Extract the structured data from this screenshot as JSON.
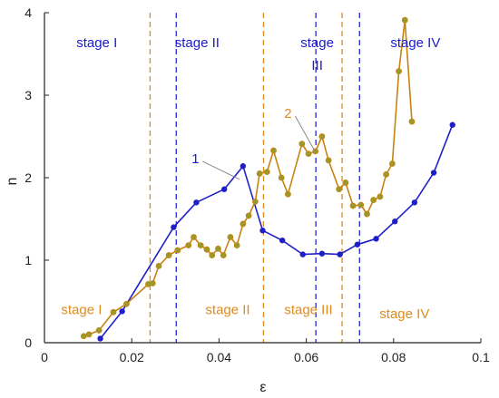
{
  "chart_data": {
    "type": "line",
    "xlabel": "ε",
    "ylabel": "n",
    "xlim": [
      0,
      0.1
    ],
    "ylim": [
      0,
      4
    ],
    "x_ticks": [
      {
        "value": 0,
        "label": "0"
      },
      {
        "value": 0.02,
        "label": "0.02"
      },
      {
        "value": 0.04,
        "label": "0.04"
      },
      {
        "value": 0.06,
        "label": "0.06"
      },
      {
        "value": 0.08,
        "label": "0.08"
      },
      {
        "value": 0.1,
        "label": "0.1"
      }
    ],
    "y_ticks": [
      {
        "value": 0,
        "label": "0"
      },
      {
        "value": 1,
        "label": "1"
      },
      {
        "value": 2,
        "label": "2"
      },
      {
        "value": 3,
        "label": "3"
      },
      {
        "value": 4,
        "label": "4"
      }
    ],
    "grid": false,
    "colors": {
      "series1": "#1f1fc8",
      "series2": "#c8820f",
      "series2_marker": "#9a9a2a"
    },
    "series": [
      {
        "name": "1",
        "color": "#1f1fc8",
        "points": [
          [
            0.0128,
            0.05
          ],
          [
            0.0178,
            0.38
          ],
          [
            0.0296,
            1.4
          ],
          [
            0.0348,
            1.7
          ],
          [
            0.0412,
            1.86
          ],
          [
            0.0455,
            2.14
          ],
          [
            0.05,
            1.36
          ],
          [
            0.0545,
            1.24
          ],
          [
            0.0592,
            1.07
          ],
          [
            0.0636,
            1.08
          ],
          [
            0.0677,
            1.07
          ],
          [
            0.0717,
            1.19
          ],
          [
            0.076,
            1.26
          ],
          [
            0.0803,
            1.47
          ],
          [
            0.0848,
            1.7
          ],
          [
            0.0892,
            2.06
          ],
          [
            0.0935,
            2.64
          ]
        ]
      },
      {
        "name": "2",
        "color": "#c8820f",
        "points": [
          [
            0.009,
            0.08
          ],
          [
            0.0102,
            0.1
          ],
          [
            0.0125,
            0.15
          ],
          [
            0.0158,
            0.37
          ],
          [
            0.0188,
            0.47
          ],
          [
            0.0238,
            0.71
          ],
          [
            0.0248,
            0.72
          ],
          [
            0.0262,
            0.93
          ],
          [
            0.0285,
            1.06
          ],
          [
            0.0305,
            1.12
          ],
          [
            0.033,
            1.18
          ],
          [
            0.0342,
            1.28
          ],
          [
            0.0358,
            1.18
          ],
          [
            0.0372,
            1.13
          ],
          [
            0.0384,
            1.06
          ],
          [
            0.0398,
            1.14
          ],
          [
            0.041,
            1.06
          ],
          [
            0.0426,
            1.28
          ],
          [
            0.0441,
            1.18
          ],
          [
            0.0455,
            1.44
          ],
          [
            0.0468,
            1.54
          ],
          [
            0.0483,
            1.71
          ],
          [
            0.0493,
            2.05
          ],
          [
            0.051,
            2.07
          ],
          [
            0.0525,
            2.33
          ],
          [
            0.0543,
            2.0
          ],
          [
            0.0558,
            1.8
          ],
          [
            0.059,
            2.41
          ],
          [
            0.0605,
            2.29
          ],
          [
            0.0621,
            2.32
          ],
          [
            0.0636,
            2.5
          ],
          [
            0.0651,
            2.21
          ],
          [
            0.0675,
            1.86
          ],
          [
            0.069,
            1.94
          ],
          [
            0.0707,
            1.66
          ],
          [
            0.0725,
            1.67
          ],
          [
            0.0739,
            1.56
          ],
          [
            0.0754,
            1.73
          ],
          [
            0.0769,
            1.77
          ],
          [
            0.0783,
            2.04
          ],
          [
            0.0797,
            2.17
          ],
          [
            0.0812,
            3.29
          ],
          [
            0.0826,
            3.91
          ],
          [
            0.0842,
            2.68
          ]
        ]
      }
    ],
    "stage_lines": [
      {
        "x": 0.0242,
        "color": "#e08a1e"
      },
      {
        "x": 0.0302,
        "color": "#2a2ad8"
      },
      {
        "x": 0.0502,
        "color": "#e08a1e"
      },
      {
        "x": 0.0622,
        "color": "#2a2ad8"
      },
      {
        "x": 0.0682,
        "color": "#e08a1e"
      },
      {
        "x": 0.0722,
        "color": "#2a2ad8"
      }
    ],
    "stage_labels_top": [
      {
        "text": "stage I",
        "x": 0.012,
        "y": 3.64,
        "color": "#1a1ad0"
      },
      {
        "text": "stage II",
        "x": 0.035,
        "y": 3.64,
        "color": "#1a1ad0"
      },
      {
        "text": "stage",
        "x": 0.0625,
        "y": 3.64,
        "color": "#1a1ad0"
      },
      {
        "text": "III",
        "x": 0.0625,
        "y": 3.36,
        "color": "#1a1ad0"
      },
      {
        "text": "stage IV",
        "x": 0.085,
        "y": 3.64,
        "color": "#1a1ad0"
      }
    ],
    "stage_labels_bottom": [
      {
        "text": "stage I",
        "x": 0.0085,
        "y": 0.4,
        "color": "#e08a1e"
      },
      {
        "text": "stage II",
        "x": 0.042,
        "y": 0.4,
        "color": "#e08a1e"
      },
      {
        "text": "stage III",
        "x": 0.0605,
        "y": 0.4,
        "color": "#e08a1e"
      },
      {
        "text": "stage IV",
        "x": 0.0825,
        "y": 0.35,
        "color": "#e08a1e"
      }
    ],
    "series_tags": [
      {
        "text": "1",
        "x": 0.0346,
        "y": 2.23,
        "color": "#1a1ad0",
        "leader_to": [
          0.0447,
          1.98
        ]
      },
      {
        "text": "2",
        "x": 0.0558,
        "y": 2.78,
        "color": "#e08a1e",
        "leader_to": [
          0.0622,
          2.3
        ]
      }
    ]
  }
}
